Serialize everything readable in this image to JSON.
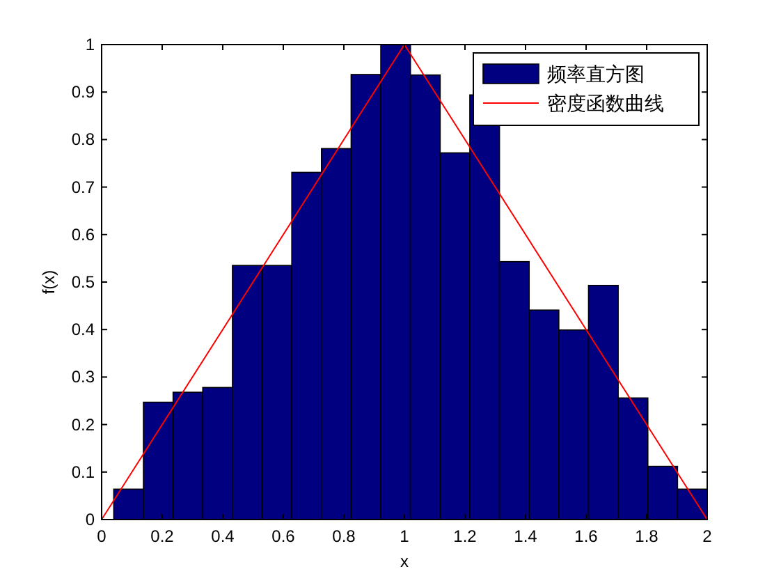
{
  "chart_data": {
    "type": "histogram",
    "xlabel": "x",
    "ylabel": "f(x)",
    "xlim": [
      0,
      2
    ],
    "xticks": [
      0,
      0.2,
      0.4,
      0.6,
      0.8,
      1,
      1.2,
      1.4,
      1.6,
      1.8,
      2
    ],
    "ylim": [
      0,
      1
    ],
    "yticks": [
      0,
      0.1,
      0.2,
      0.3,
      0.4,
      0.5,
      0.6,
      0.7,
      0.8,
      0.9,
      1
    ],
    "grid": false,
    "legend": "top right",
    "series": [
      {
        "name": "频率直方图",
        "color": "#000080",
        "bins": [
          0.04,
          0.138,
          0.236,
          0.334,
          0.432,
          0.53,
          0.628,
          0.726,
          0.824,
          0.922,
          1.02,
          1.118,
          1.216,
          1.314,
          1.412,
          1.51,
          1.608,
          1.706,
          1.804,
          1.902,
          2.0
        ],
        "values": [
          0.064,
          0.247,
          0.268,
          0.278,
          0.535,
          0.535,
          0.731,
          0.781,
          0.937,
          1.0,
          0.936,
          0.772,
          0.894,
          0.543,
          0.441,
          0.399,
          0.493,
          0.256,
          0.112,
          0.064
        ]
      },
      {
        "type": "line",
        "name": "密度函数曲线",
        "color": "#ff0000",
        "x": [
          0,
          1,
          2
        ],
        "values": [
          0,
          1,
          0
        ]
      }
    ]
  }
}
